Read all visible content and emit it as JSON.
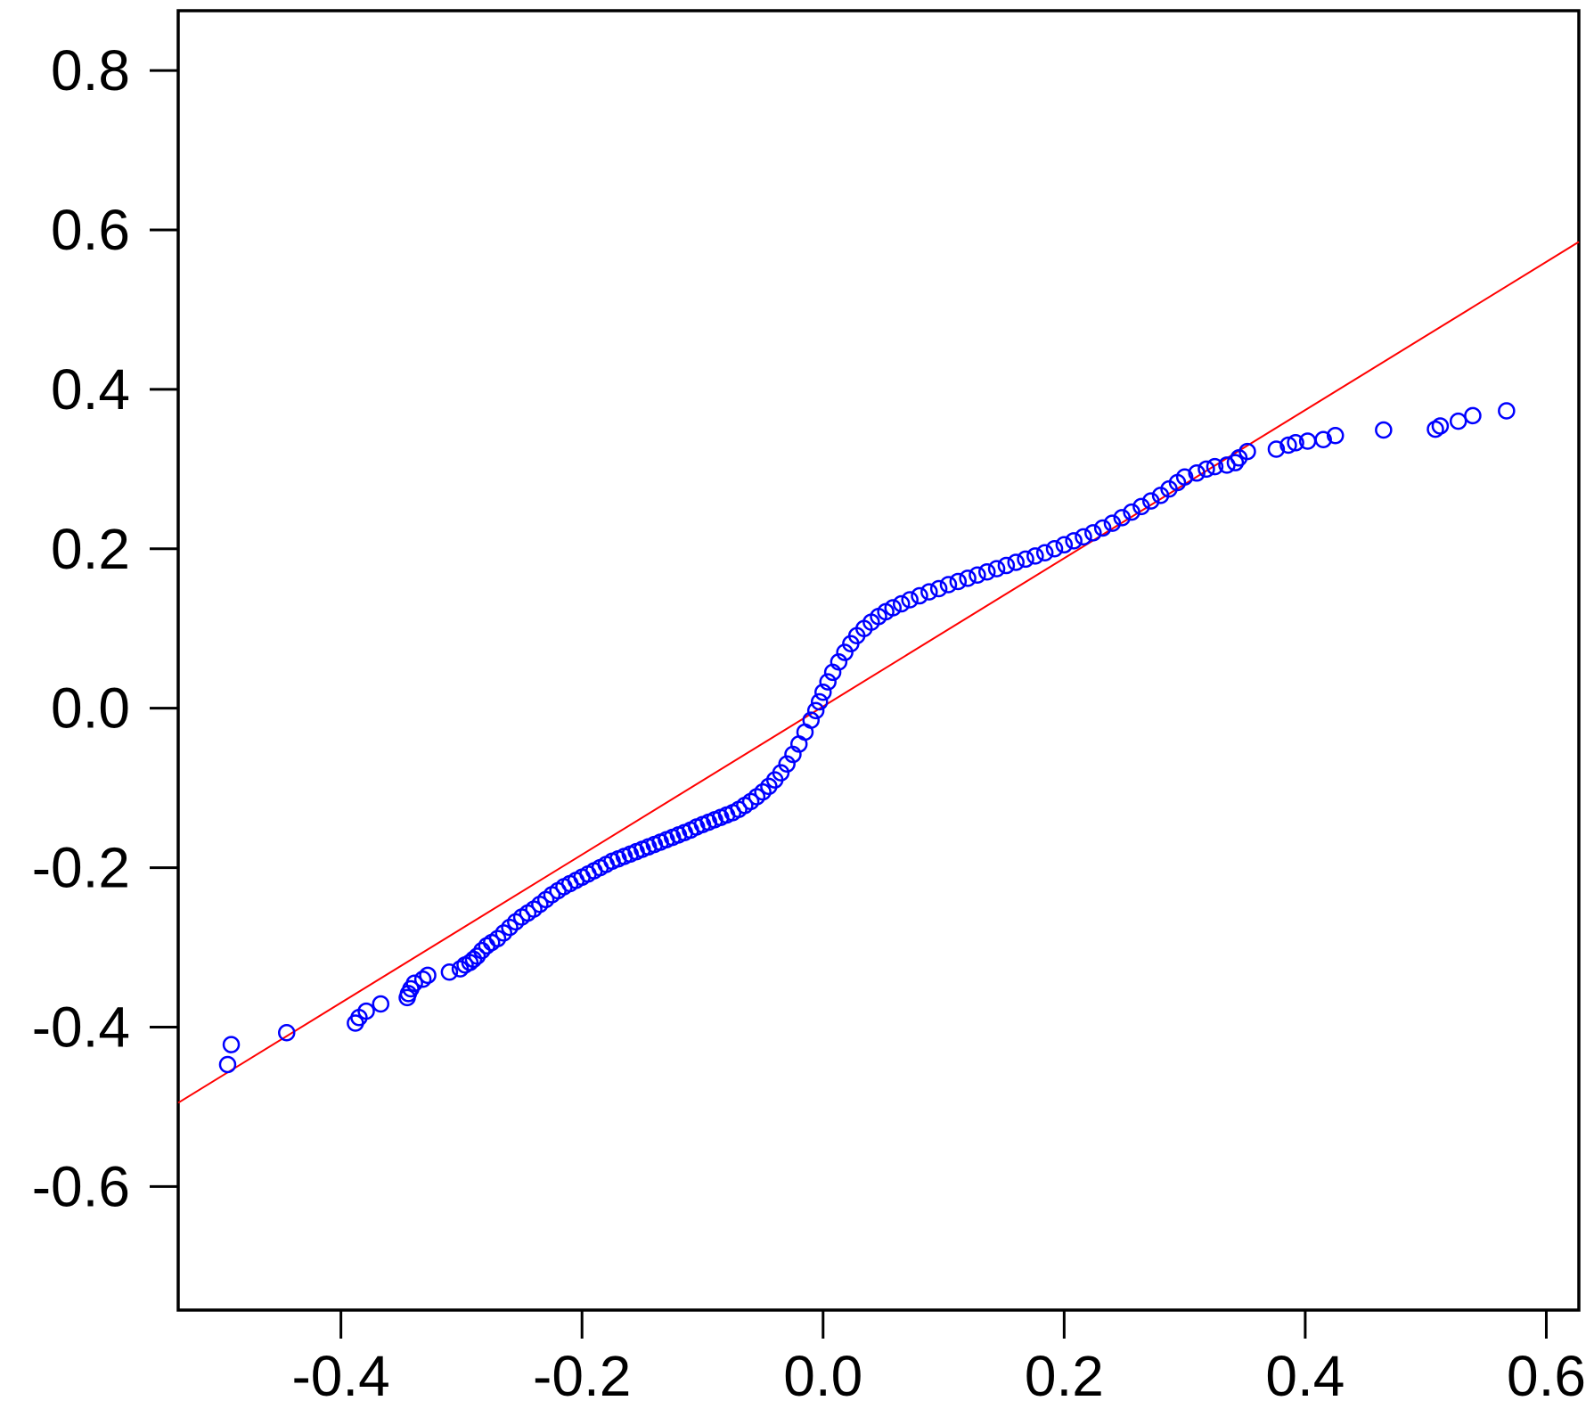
{
  "chart_data": {
    "type": "scatter",
    "title": "",
    "xlabel": "",
    "ylabel": "",
    "xlim": [
      -0.535,
      0.627
    ],
    "ylim": [
      -0.755,
      0.875
    ],
    "grid": false,
    "legend": "none",
    "x_ticks": [
      {
        "value": -0.4,
        "label": "-0.4"
      },
      {
        "value": -0.2,
        "label": "-0.2"
      },
      {
        "value": 0.0,
        "label": "0.0"
      },
      {
        "value": 0.2,
        "label": "0.2"
      },
      {
        "value": 0.4,
        "label": "0.4"
      },
      {
        "value": 0.6,
        "label": "0.6"
      }
    ],
    "y_ticks": [
      {
        "value": 0.8,
        "label": "0.8"
      },
      {
        "value": 0.6,
        "label": "0.6"
      },
      {
        "value": 0.4,
        "label": "0.4"
      },
      {
        "value": 0.2,
        "label": "0.2"
      },
      {
        "value": 0.0,
        "label": "0.0"
      },
      {
        "value": -0.2,
        "label": "-0.2"
      },
      {
        "value": -0.4,
        "label": "-0.4"
      },
      {
        "value": -0.6,
        "label": "-0.6"
      }
    ],
    "reference_line": {
      "x": [
        -0.535,
        0.627
      ],
      "y": [
        -0.495,
        0.585
      ],
      "color": "#ff0000"
    },
    "points_color": "#0000ff",
    "points": [
      [
        -0.494,
        -0.447
      ],
      [
        -0.491,
        -0.422
      ],
      [
        -0.445,
        -0.407
      ],
      [
        -0.388,
        -0.395
      ],
      [
        -0.385,
        -0.388
      ],
      [
        -0.379,
        -0.38
      ],
      [
        -0.367,
        -0.371
      ],
      [
        -0.345,
        -0.363
      ],
      [
        -0.344,
        -0.358
      ],
      [
        -0.342,
        -0.352
      ],
      [
        -0.339,
        -0.345
      ],
      [
        -0.332,
        -0.34
      ],
      [
        -0.328,
        -0.335
      ],
      [
        -0.31,
        -0.331
      ],
      [
        -0.301,
        -0.327
      ],
      [
        -0.297,
        -0.322
      ],
      [
        -0.293,
        -0.319
      ],
      [
        -0.29,
        -0.315
      ],
      [
        -0.287,
        -0.311
      ],
      [
        -0.283,
        -0.304
      ],
      [
        -0.279,
        -0.298
      ],
      [
        -0.275,
        -0.294
      ],
      [
        -0.27,
        -0.289
      ],
      [
        -0.265,
        -0.282
      ],
      [
        -0.26,
        -0.275
      ],
      [
        -0.255,
        -0.268
      ],
      [
        -0.25,
        -0.262
      ],
      [
        -0.245,
        -0.257
      ],
      [
        -0.24,
        -0.252
      ],
      [
        -0.235,
        -0.246
      ],
      [
        -0.23,
        -0.24
      ],
      [
        -0.225,
        -0.234
      ],
      [
        -0.22,
        -0.229
      ],
      [
        -0.215,
        -0.224
      ],
      [
        -0.21,
        -0.22
      ],
      [
        -0.205,
        -0.216
      ],
      [
        -0.2,
        -0.212
      ],
      [
        -0.195,
        -0.208
      ],
      [
        -0.19,
        -0.204
      ],
      [
        -0.185,
        -0.2
      ],
      [
        -0.18,
        -0.196
      ],
      [
        -0.175,
        -0.192
      ],
      [
        -0.17,
        -0.189
      ],
      [
        -0.165,
        -0.186
      ],
      [
        -0.16,
        -0.183
      ],
      [
        -0.155,
        -0.18
      ],
      [
        -0.15,
        -0.177
      ],
      [
        -0.145,
        -0.174
      ],
      [
        -0.14,
        -0.171
      ],
      [
        -0.135,
        -0.168
      ],
      [
        -0.13,
        -0.165
      ],
      [
        -0.125,
        -0.162
      ],
      [
        -0.12,
        -0.159
      ],
      [
        -0.115,
        -0.156
      ],
      [
        -0.11,
        -0.153
      ],
      [
        -0.105,
        -0.149
      ],
      [
        -0.1,
        -0.146
      ],
      [
        -0.095,
        -0.143
      ],
      [
        -0.09,
        -0.14
      ],
      [
        -0.085,
        -0.137
      ],
      [
        -0.08,
        -0.134
      ],
      [
        -0.075,
        -0.131
      ],
      [
        -0.07,
        -0.127
      ],
      [
        -0.065,
        -0.122
      ],
      [
        -0.06,
        -0.117
      ],
      [
        -0.055,
        -0.111
      ],
      [
        -0.05,
        -0.105
      ],
      [
        -0.045,
        -0.098
      ],
      [
        -0.04,
        -0.09
      ],
      [
        -0.035,
        -0.081
      ],
      [
        -0.03,
        -0.07
      ],
      [
        -0.025,
        -0.058
      ],
      [
        -0.02,
        -0.045
      ],
      [
        -0.015,
        -0.03
      ],
      [
        -0.01,
        -0.015
      ],
      [
        -0.006,
        -0.003
      ],
      [
        -0.003,
        0.008
      ],
      [
        0.0,
        0.02
      ],
      [
        0.004,
        0.033
      ],
      [
        0.008,
        0.045
      ],
      [
        0.013,
        0.058
      ],
      [
        0.018,
        0.07
      ],
      [
        0.023,
        0.081
      ],
      [
        0.028,
        0.091
      ],
      [
        0.034,
        0.1
      ],
      [
        0.04,
        0.108
      ],
      [
        0.046,
        0.115
      ],
      [
        0.052,
        0.121
      ],
      [
        0.058,
        0.126
      ],
      [
        0.065,
        0.131
      ],
      [
        0.072,
        0.136
      ],
      [
        0.08,
        0.141
      ],
      [
        0.088,
        0.146
      ],
      [
        0.096,
        0.15
      ],
      [
        0.104,
        0.155
      ],
      [
        0.112,
        0.159
      ],
      [
        0.12,
        0.163
      ],
      [
        0.128,
        0.167
      ],
      [
        0.136,
        0.171
      ],
      [
        0.144,
        0.175
      ],
      [
        0.152,
        0.179
      ],
      [
        0.16,
        0.183
      ],
      [
        0.168,
        0.187
      ],
      [
        0.176,
        0.191
      ],
      [
        0.184,
        0.195
      ],
      [
        0.192,
        0.2
      ],
      [
        0.2,
        0.205
      ],
      [
        0.208,
        0.21
      ],
      [
        0.216,
        0.215
      ],
      [
        0.224,
        0.22
      ],
      [
        0.232,
        0.226
      ],
      [
        0.24,
        0.232
      ],
      [
        0.248,
        0.239
      ],
      [
        0.256,
        0.246
      ],
      [
        0.264,
        0.253
      ],
      [
        0.272,
        0.26
      ],
      [
        0.28,
        0.267
      ],
      [
        0.287,
        0.275
      ],
      [
        0.294,
        0.283
      ],
      [
        0.3,
        0.29
      ],
      [
        0.31,
        0.295
      ],
      [
        0.318,
        0.3
      ],
      [
        0.325,
        0.303
      ],
      [
        0.335,
        0.305
      ],
      [
        0.342,
        0.308
      ],
      [
        0.345,
        0.314
      ],
      [
        0.352,
        0.322
      ],
      [
        0.376,
        0.325
      ],
      [
        0.386,
        0.33
      ],
      [
        0.392,
        0.333
      ],
      [
        0.402,
        0.335
      ],
      [
        0.415,
        0.337
      ],
      [
        0.425,
        0.342
      ],
      [
        0.465,
        0.349
      ],
      [
        0.508,
        0.35
      ],
      [
        0.512,
        0.354
      ],
      [
        0.527,
        0.36
      ],
      [
        0.539,
        0.367
      ],
      [
        0.567,
        0.373
      ]
    ]
  }
}
